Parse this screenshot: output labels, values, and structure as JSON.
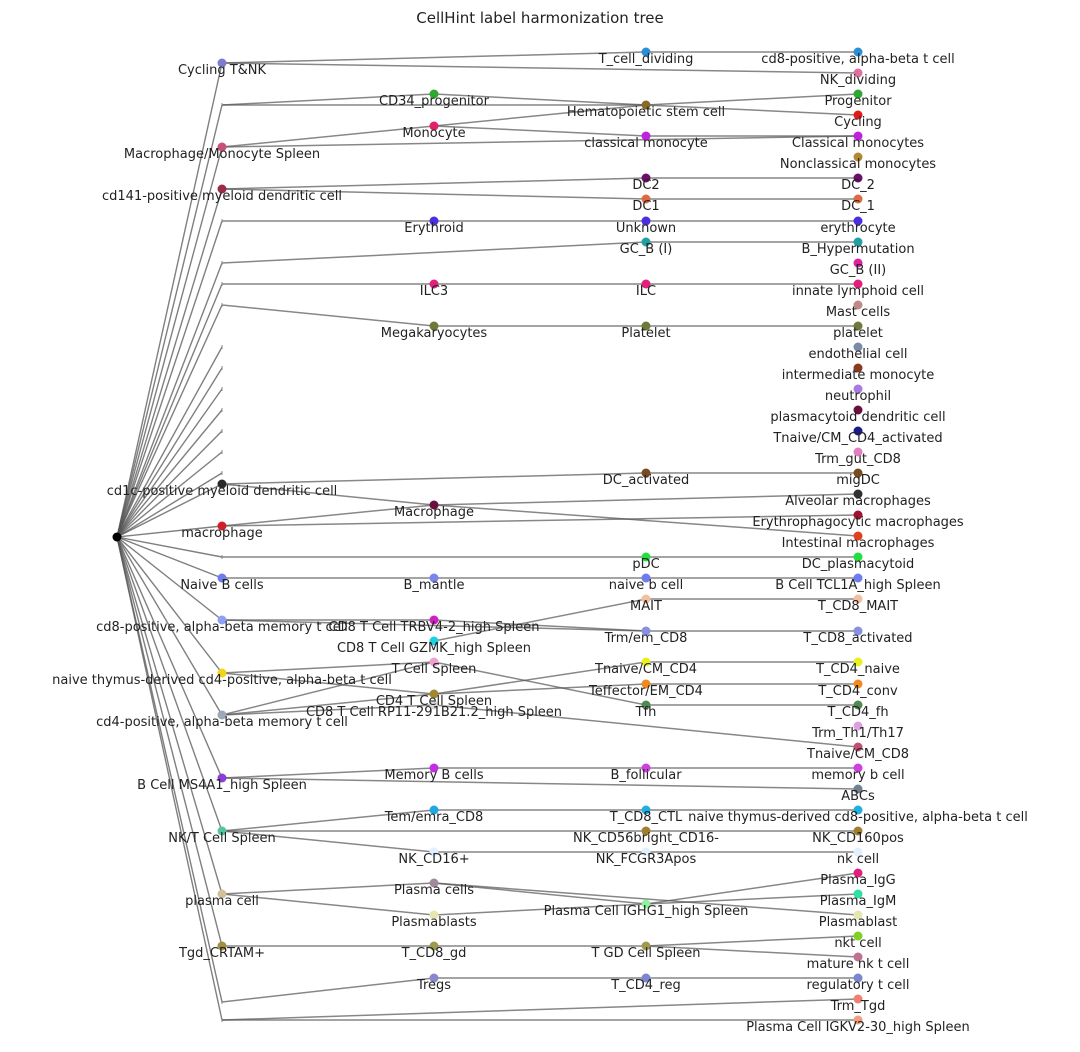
{
  "title": "CellHint label harmonization tree",
  "columns": [
    [
      {
        "label": "Cycling T&NK",
        "color": "#7d7dd0"
      },
      {
        "label": "",
        "color": ""
      },
      {
        "label": "Macrophage/Monocyte Spleen",
        "color": "#c8507a"
      },
      {
        "label": "cd141-positive myeloid dendritic cell",
        "color": "#9b2c48"
      },
      {
        "label": "",
        "color": ""
      },
      {
        "label": "",
        "color": ""
      },
      {
        "label": "",
        "color": ""
      },
      {
        "label": "",
        "color": ""
      },
      {
        "label": "",
        "color": ""
      },
      {
        "label": "",
        "color": ""
      },
      {
        "label": "",
        "color": ""
      },
      {
        "label": "",
        "color": ""
      },
      {
        "label": "",
        "color": ""
      },
      {
        "label": "",
        "color": ""
      },
      {
        "label": "",
        "color": ""
      },
      {
        "label": "cd1c-positive myeloid dendritic cell",
        "color": "#2a2a2a"
      },
      {
        "label": "macrophage",
        "color": "#d11f2a"
      },
      {
        "label": "",
        "color": ""
      },
      {
        "label": "Naive B cells",
        "color": "#6f7cf0"
      },
      {
        "label": "cd8-positive, alpha-beta memory t cell",
        "color": "#8fa0f5"
      },
      {
        "label": "naive thymus-derived cd4-positive, alpha-beta t cell",
        "color": "#f2d418"
      },
      {
        "label": "cd4-positive, alpha-beta memory t cell",
        "color": "#9aa8b8"
      },
      {
        "label": "B Cell MS4A1_high Spleen",
        "color": "#8b3fd8"
      },
      {
        "label": "NK/T Cell Spleen",
        "color": "#55c4a0"
      },
      {
        "label": "plasma cell",
        "color": "#cfc29a"
      },
      {
        "label": "Tgd_CRTAM+",
        "color": "#a09040"
      },
      {
        "label": "",
        "color": ""
      },
      {
        "label": "",
        "color": ""
      }
    ],
    [
      {
        "label": "CD34_progenitor",
        "color": "#2ea830"
      },
      {
        "label": "Monocyte",
        "color": "#e0206a"
      },
      {
        "label": "Erythroid",
        "color": "#4b2ee0"
      },
      {
        "label": "ILC3",
        "color": "#e0207a"
      },
      {
        "label": "Megakaryocytes",
        "color": "#6e7a3a"
      },
      {
        "label": "Macrophage",
        "color": "#6a1040"
      },
      {
        "label": "B_mantle",
        "color": "#7a86e8"
      },
      {
        "label": "CD8 T Cell TRBV4-2_high Spleen",
        "color": "#d020c0"
      },
      {
        "label": "CD8 T Cell GZMK_high Spleen",
        "color": "#20d0e0"
      },
      {
        "label": "T Cell Spleen",
        "color": "#f0a0d0"
      },
      {
        "label": "CD4 T Cell Spleen",
        "color": "#a08830"
      },
      {
        "label": "CD8 T Cell RP11-291B21.2_high Spleen",
        "color": "#d8d8d8"
      },
      {
        "label": "Memory B cells",
        "color": "#c030e0"
      },
      {
        "label": "Tem/emra_CD8",
        "color": "#20a8e0"
      },
      {
        "label": "NK_CD16+",
        "color": "#e0f0ff"
      },
      {
        "label": "Plasma cells",
        "color": "#a08aa0"
      },
      {
        "label": "Plasmablasts",
        "color": "#e6e6b0"
      },
      {
        "label": "T_CD8_gd",
        "color": "#a09a50"
      },
      {
        "label": "Tregs",
        "color": "#8888cc"
      }
    ],
    [
      {
        "label": "T_cell_dividing",
        "color": "#2a8fd6"
      },
      {
        "label": "Hematopoietic stem cell",
        "color": "#8a6a2a"
      },
      {
        "label": "classical monocyte",
        "color": "#c020e0"
      },
      {
        "label": "DC2",
        "color": "#6a106a"
      },
      {
        "label": "DC1",
        "color": "#e06a40"
      },
      {
        "label": "Unknown",
        "color": "#4b2ee0"
      },
      {
        "label": "GC_B (I)",
        "color": "#20a0a0"
      },
      {
        "label": "ILC",
        "color": "#e0207a"
      },
      {
        "label": "Platelet",
        "color": "#6e7a3a"
      },
      {
        "label": "DC_activated",
        "color": "#7a4a20"
      },
      {
        "label": "pDC",
        "color": "#20e040"
      },
      {
        "label": "naive b cell",
        "color": "#6f7cf0"
      },
      {
        "label": "MAIT",
        "color": "#f0c0a0"
      },
      {
        "label": "Trm/em_CD8",
        "color": "#8a90e0"
      },
      {
        "label": "Tnaive/CM_CD4",
        "color": "#e8f020"
      },
      {
        "label": "Teffector/EM_CD4",
        "color": "#f08a20"
      },
      {
        "label": "Tfh",
        "color": "#508a50"
      },
      {
        "label": "B_follicular",
        "color": "#d040e0"
      },
      {
        "label": "T_CD8_CTL",
        "color": "#20b0e0"
      },
      {
        "label": "NK_CD56bright_CD16-",
        "color": "#a08030"
      },
      {
        "label": "NK_FCGR3Apos",
        "color": "#e0f0ff"
      },
      {
        "label": "Plasma Cell IGHG1_high Spleen",
        "color": "#90f0a0"
      },
      {
        "label": "T GD Cell Spleen",
        "color": "#a09a50"
      },
      {
        "label": "T_CD4_reg",
        "color": "#7a86d0"
      }
    ],
    [
      {
        "label": "cd8-positive, alpha-beta t cell",
        "color": "#2a8fd6"
      },
      {
        "label": "NK_dividing",
        "color": "#e070a0"
      },
      {
        "label": "Progenitor",
        "color": "#2ea830"
      },
      {
        "label": "Cycling",
        "color": "#e01a1a"
      },
      {
        "label": "Classical monocytes",
        "color": "#c020e0"
      },
      {
        "label": "Nonclassical monocytes",
        "color": "#b08a30"
      },
      {
        "label": "DC_2",
        "color": "#6a106a"
      },
      {
        "label": "DC_1",
        "color": "#e06a40"
      },
      {
        "label": "erythrocyte",
        "color": "#4b2ee0"
      },
      {
        "label": "B_Hypermutation",
        "color": "#20a0a0"
      },
      {
        "label": "GC_B (II)",
        "color": "#e020a0"
      },
      {
        "label": "innate lymphoid cell",
        "color": "#e0207a"
      },
      {
        "label": "Mast cells",
        "color": "#c08a8a"
      },
      {
        "label": "platelet",
        "color": "#6e7a3a"
      },
      {
        "label": "endothelial cell",
        "color": "#7a8aa8"
      },
      {
        "label": "intermediate monocyte",
        "color": "#8a3a20"
      },
      {
        "label": "neutrophil",
        "color": "#a87ae0"
      },
      {
        "label": "plasmacytoid dendritic cell",
        "color": "#6a1040"
      },
      {
        "label": "Tnaive/CM_CD4_activated",
        "color": "#1a1a8a"
      },
      {
        "label": "Trm_gut_CD8",
        "color": "#e080c0"
      },
      {
        "label": "migDC",
        "color": "#7a4a20"
      },
      {
        "label": "Alveolar macrophages",
        "color": "#303030"
      },
      {
        "label": "Erythrophagocytic macrophages",
        "color": "#a01030"
      },
      {
        "label": "Intestinal macrophages",
        "color": "#e04020"
      },
      {
        "label": "DC_plasmacytoid",
        "color": "#20e040"
      },
      {
        "label": "B Cell TCL1A_high Spleen",
        "color": "#6f7cf0"
      },
      {
        "label": "T_CD8_MAIT",
        "color": "#f0c0a0"
      },
      {
        "label": "T_CD8_activated",
        "color": "#8a90e0"
      },
      {
        "label": "T_CD4_naive",
        "color": "#e8f020"
      },
      {
        "label": "T_CD4_conv",
        "color": "#f08a20"
      },
      {
        "label": "T_CD4_fh",
        "color": "#508a50"
      },
      {
        "label": "Trm_Th1/Th17",
        "color": "#e0a0e0"
      },
      {
        "label": "Tnaive/CM_CD8",
        "color": "#c05070"
      },
      {
        "label": "memory b cell",
        "color": "#d040e0"
      },
      {
        "label": "ABCs",
        "color": "#708090"
      },
      {
        "label": "naive thymus-derived cd8-positive, alpha-beta t cell",
        "color": "#20b0e0"
      },
      {
        "label": "NK_CD160pos",
        "color": "#a08030"
      },
      {
        "label": "nk cell",
        "color": "#e0f0ff"
      },
      {
        "label": "Plasma_IgG",
        "color": "#e0207a"
      },
      {
        "label": "Plasma_IgM",
        "color": "#30e0a0"
      },
      {
        "label": "Plasmablast",
        "color": "#e6e6b0"
      },
      {
        "label": "nkt cell",
        "color": "#80d020"
      },
      {
        "label": "mature nk t cell",
        "color": "#c07090"
      },
      {
        "label": "regulatory t cell",
        "color": "#7a86d0"
      },
      {
        "label": "Trm_Tgd",
        "color": "#f08070"
      },
      {
        "label": "Plasma Cell IGKV2-30_high Spleen",
        "color": "#f0a080"
      }
    ]
  ],
  "edges": [
    [
      [
        0,
        0
      ],
      [
        2,
        0
      ]
    ],
    [
      [
        0,
        0
      ],
      [
        3,
        1
      ]
    ],
    [
      [
        0,
        1
      ],
      [
        1,
        0
      ]
    ],
    [
      [
        0,
        1
      ],
      [
        2,
        1
      ]
    ],
    [
      [
        0,
        2
      ],
      [
        1,
        1
      ]
    ],
    [
      [
        0,
        2
      ],
      [
        3,
        4
      ]
    ],
    [
      [
        1,
        0
      ],
      [
        2,
        1
      ]
    ],
    [
      [
        1,
        1
      ],
      [
        2,
        1
      ]
    ],
    [
      [
        1,
        1
      ],
      [
        2,
        2
      ]
    ],
    [
      [
        2,
        1
      ],
      [
        3,
        2
      ]
    ],
    [
      [
        2,
        1
      ],
      [
        3,
        3
      ]
    ],
    [
      [
        2,
        0
      ],
      [
        3,
        0
      ]
    ],
    [
      [
        2,
        2
      ],
      [
        3,
        4
      ]
    ],
    [
      [
        0,
        3
      ],
      [
        2,
        3
      ]
    ],
    [
      [
        2,
        3
      ],
      [
        3,
        6
      ]
    ],
    [
      [
        0,
        3
      ],
      [
        2,
        4
      ]
    ],
    [
      [
        2,
        4
      ],
      [
        3,
        7
      ]
    ],
    [
      [
        0,
        4
      ],
      [
        1,
        2
      ]
    ],
    [
      [
        1,
        2
      ],
      [
        2,
        5
      ]
    ],
    [
      [
        2,
        5
      ],
      [
        3,
        8
      ]
    ],
    [
      [
        0,
        5
      ],
      [
        2,
        6
      ]
    ],
    [
      [
        2,
        6
      ],
      [
        3,
        9
      ]
    ],
    [
      [
        0,
        6
      ],
      [
        1,
        3
      ]
    ],
    [
      [
        1,
        3
      ],
      [
        2,
        7
      ]
    ],
    [
      [
        2,
        7
      ],
      [
        3,
        11
      ]
    ],
    [
      [
        0,
        7
      ],
      [
        1,
        4
      ]
    ],
    [
      [
        1,
        4
      ],
      [
        2,
        8
      ]
    ],
    [
      [
        2,
        8
      ],
      [
        3,
        13
      ]
    ],
    [
      [
        0,
        15
      ],
      [
        1,
        5
      ]
    ],
    [
      [
        0,
        15
      ],
      [
        2,
        9
      ]
    ],
    [
      [
        2,
        9
      ],
      [
        3,
        20
      ]
    ],
    [
      [
        0,
        16
      ],
      [
        1,
        5
      ]
    ],
    [
      [
        1,
        5
      ],
      [
        3,
        21
      ]
    ],
    [
      [
        1,
        5
      ],
      [
        3,
        23
      ]
    ],
    [
      [
        0,
        16
      ],
      [
        3,
        22
      ]
    ],
    [
      [
        0,
        17
      ],
      [
        2,
        10
      ]
    ],
    [
      [
        2,
        10
      ],
      [
        3,
        24
      ]
    ],
    [
      [
        0,
        18
      ],
      [
        1,
        6
      ]
    ],
    [
      [
        1,
        6
      ],
      [
        2,
        11
      ]
    ],
    [
      [
        2,
        11
      ],
      [
        3,
        25
      ]
    ],
    [
      [
        0,
        19
      ],
      [
        1,
        7
      ]
    ],
    [
      [
        1,
        7
      ],
      [
        2,
        13
      ]
    ],
    [
      [
        0,
        19
      ],
      [
        2,
        13
      ]
    ],
    [
      [
        1,
        8
      ],
      [
        2,
        12
      ]
    ],
    [
      [
        2,
        12
      ],
      [
        3,
        26
      ]
    ],
    [
      [
        2,
        13
      ],
      [
        3,
        27
      ]
    ],
    [
      [
        0,
        20
      ],
      [
        1,
        9
      ]
    ],
    [
      [
        1,
        9
      ],
      [
        2,
        16
      ]
    ],
    [
      [
        2,
        16
      ],
      [
        3,
        30
      ]
    ],
    [
      [
        0,
        20
      ],
      [
        1,
        10
      ]
    ],
    [
      [
        1,
        10
      ],
      [
        2,
        14
      ]
    ],
    [
      [
        2,
        14
      ],
      [
        3,
        28
      ]
    ],
    [
      [
        0,
        21
      ],
      [
        1,
        9
      ]
    ],
    [
      [
        0,
        21
      ],
      [
        1,
        10
      ]
    ],
    [
      [
        1,
        10
      ],
      [
        2,
        15
      ]
    ],
    [
      [
        2,
        15
      ],
      [
        3,
        29
      ]
    ],
    [
      [
        0,
        21
      ],
      [
        1,
        11
      ]
    ],
    [
      [
        1,
        11
      ],
      [
        3,
        32
      ]
    ],
    [
      [
        0,
        22
      ],
      [
        1,
        12
      ]
    ],
    [
      [
        1,
        12
      ],
      [
        2,
        17
      ]
    ],
    [
      [
        2,
        17
      ],
      [
        3,
        33
      ]
    ],
    [
      [
        0,
        22
      ],
      [
        3,
        34
      ]
    ],
    [
      [
        0,
        23
      ],
      [
        1,
        13
      ]
    ],
    [
      [
        1,
        13
      ],
      [
        2,
        18
      ]
    ],
    [
      [
        2,
        18
      ],
      [
        3,
        35
      ]
    ],
    [
      [
        0,
        23
      ],
      [
        2,
        19
      ]
    ],
    [
      [
        2,
        19
      ],
      [
        3,
        36
      ]
    ],
    [
      [
        0,
        23
      ],
      [
        1,
        14
      ]
    ],
    [
      [
        1,
        14
      ],
      [
        3,
        37
      ]
    ],
    [
      [
        0,
        24
      ],
      [
        1,
        15
      ]
    ],
    [
      [
        1,
        15
      ],
      [
        2,
        21
      ]
    ],
    [
      [
        0,
        24
      ],
      [
        1,
        16
      ]
    ],
    [
      [
        1,
        16
      ],
      [
        2,
        21
      ]
    ],
    [
      [
        2,
        21
      ],
      [
        3,
        38
      ]
    ],
    [
      [
        2,
        21
      ],
      [
        3,
        39
      ]
    ],
    [
      [
        1,
        15
      ],
      [
        3,
        40
      ]
    ],
    [
      [
        0,
        25
      ],
      [
        1,
        17
      ]
    ],
    [
      [
        1,
        17
      ],
      [
        2,
        22
      ]
    ],
    [
      [
        2,
        22
      ],
      [
        3,
        41
      ]
    ],
    [
      [
        2,
        22
      ],
      [
        3,
        42
      ]
    ],
    [
      [
        0,
        26
      ],
      [
        1,
        18
      ]
    ],
    [
      [
        1,
        18
      ],
      [
        2,
        23
      ]
    ],
    [
      [
        2,
        23
      ],
      [
        3,
        43
      ]
    ],
    [
      [
        0,
        27
      ],
      [
        3,
        44
      ]
    ],
    [
      [
        0,
        27
      ],
      [
        3,
        45
      ]
    ]
  ]
}
